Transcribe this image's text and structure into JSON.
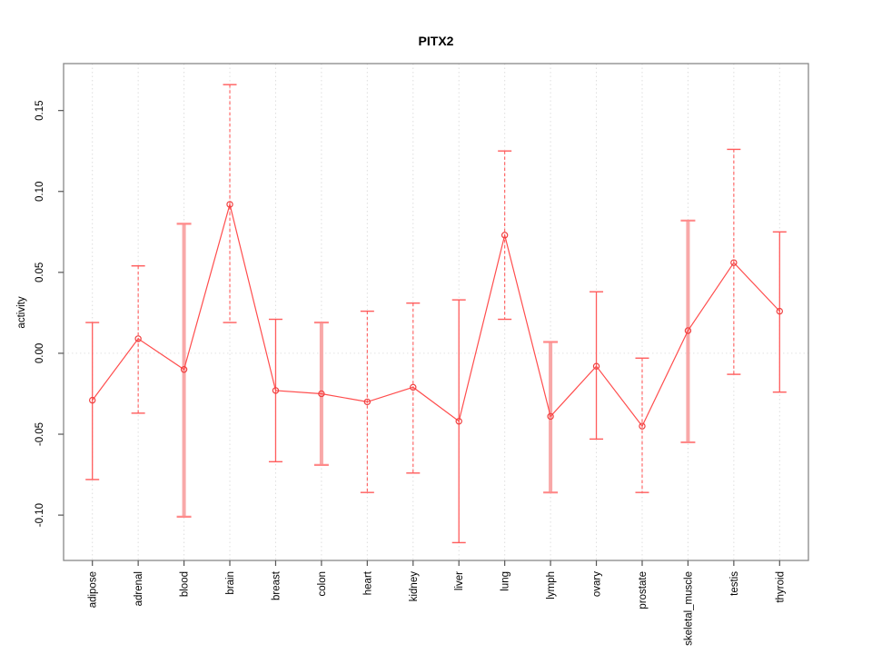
{
  "window": {
    "title": "PITX2 activity plot",
    "background": "#ffffff"
  },
  "colors": {
    "line": "#ff4d4d",
    "bar_solid": "#ff5c5c",
    "bar_dashed": "#ff5c5c",
    "bar_thick": "#f8a8a8",
    "cap": "#ff5c5c",
    "cap_thick": "#ff8a8a",
    "point_stroke": "#f04141",
    "grid": "#dedede",
    "zero_line": "#e2e2e2",
    "box": "#888888",
    "tick": "#555555",
    "text": "#000000"
  },
  "chart_data": {
    "type": "line",
    "subtype": "points-with-error-bars",
    "title": "PITX2",
    "xlabel": "",
    "ylabel": "activity",
    "legend": "none",
    "point_marker": "open-circle",
    "error_bars": true,
    "grid": {
      "vertical_category_lines": true,
      "zero_line_dotted": true
    },
    "categories": [
      "adipose",
      "adrenal",
      "blood",
      "brain",
      "breast",
      "colon",
      "heart",
      "kidney",
      "liver",
      "lung",
      "lymph",
      "ovary",
      "prostate",
      "skeletal_muscle",
      "testis",
      "thyroid"
    ],
    "series": [
      {
        "name": "activity",
        "values": [
          -0.029,
          0.009,
          -0.01,
          0.092,
          -0.023,
          -0.025,
          -0.03,
          -0.021,
          -0.042,
          0.073,
          -0.039,
          -0.008,
          -0.045,
          0.014,
          0.056,
          0.026
        ],
        "err_high": [
          0.019,
          0.054,
          0.08,
          0.166,
          0.021,
          0.019,
          0.026,
          0.031,
          0.033,
          0.125,
          0.007,
          0.038,
          -0.003,
          0.082,
          0.126,
          0.075
        ],
        "err_low": [
          -0.078,
          -0.037,
          -0.101,
          0.019,
          -0.067,
          -0.069,
          -0.086,
          -0.074,
          -0.117,
          0.021,
          -0.086,
          -0.053,
          -0.086,
          -0.055,
          -0.013,
          -0.024
        ]
      }
    ],
    "bar_styles": [
      "solid",
      "dashed",
      "thick",
      "dashed",
      "solid",
      "thick",
      "dashed",
      "dashed",
      "solid",
      "dashed",
      "thick",
      "solid",
      "dashed",
      "thick",
      "dashed",
      "solid"
    ],
    "yticks": {
      "values": [
        -0.1,
        -0.05,
        0.0,
        0.05,
        0.1,
        0.15
      ],
      "labels": [
        "-0.10",
        "-0.05",
        "0.00",
        "0.05",
        "0.10",
        "0.15"
      ]
    },
    "ylim": [
      -0.128,
      0.179
    ]
  }
}
